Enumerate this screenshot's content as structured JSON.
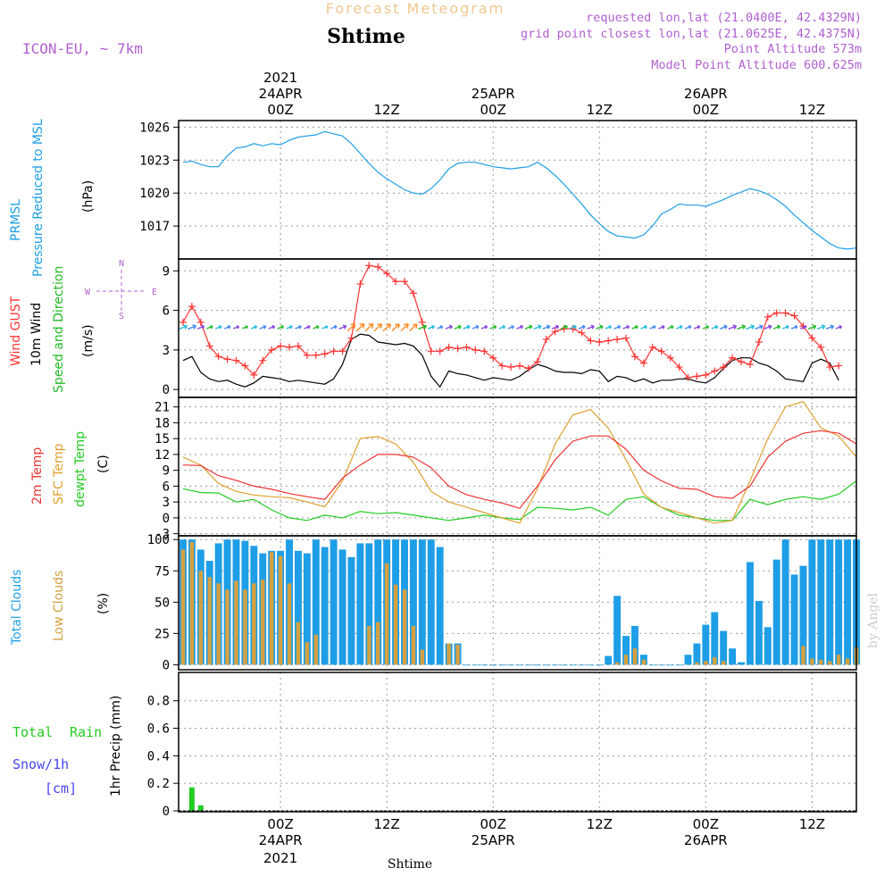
{
  "header": {
    "title": "Forecast Meteogram",
    "subtitle": "Shtime",
    "model": "ICON-EU, ~ 7km",
    "requested": "requested lon,lat (21.0400E, 42.4329N)",
    "gridpoint": "grid point closest lon,lat (21.0625E, 42.4375N)",
    "point_alt": "Point Altitude 573m",
    "model_alt": "Model Point Altitude 600.625m",
    "footer": "Shtime",
    "credit": "by Angel"
  },
  "time_axis": {
    "year": "2021",
    "labels": [
      {
        "h": 0,
        "label": "00Z",
        "date": "24APR"
      },
      {
        "h": 12,
        "label": "12Z",
        "date": ""
      },
      {
        "h": 24,
        "label": "00Z",
        "date": "25APR"
      },
      {
        "h": 36,
        "label": "12Z",
        "date": ""
      },
      {
        "h": 48,
        "label": "00Z",
        "date": "26APR"
      },
      {
        "h": 60,
        "label": "12Z",
        "date": ""
      }
    ],
    "range_hours": [
      -11.5,
      65
    ]
  },
  "colors": {
    "pressure": "#1e9ee6",
    "gust": "#ff3333",
    "wind": "#000000",
    "direction": "#22bb22",
    "temp2m": "#ee3333",
    "sfc": "#e0a030",
    "dew": "#22cc22",
    "clouds_total": "#1e9ee6",
    "clouds_low": "#d4a040",
    "rain": "#22cc22",
    "snow": "#4444ee",
    "meta": "#b060d0"
  },
  "panels": {
    "pressure": {
      "label1": "PRMSL",
      "label2": "Pressure Reduced to MSL",
      "unit": "(hPa)"
    },
    "wind": {
      "label1": "Wind GUST",
      "label2": "10m Wind",
      "label3": "Speed and Direction",
      "unit": "(m/s)",
      "compass_n": "N",
      "compass_s": "S",
      "compass_w": "W",
      "compass_e": "E"
    },
    "temp": {
      "label1": "2m Temp",
      "label2": "SFC Temp",
      "label3": "dewpt Temp",
      "unit": "(C)"
    },
    "clouds": {
      "label1": "Total Clouds",
      "label2": "Low Clouds",
      "unit": "(%)"
    },
    "precip": {
      "label1": "Total",
      "label1b": "Rain",
      "label2": "Snow/1h",
      "label3": "[cm]",
      "unit": "1hr Precip (mm)"
    }
  },
  "chart_data": {
    "type": "line",
    "x_units": "hours from 2021-04-24 00Z",
    "pressure": {
      "ylim": [
        1014,
        1026.6
      ],
      "ticks": [
        1017,
        1020,
        1023,
        1026
      ],
      "x": [
        -11,
        -10,
        -9,
        -8,
        -7,
        -6,
        -5,
        -4,
        -3,
        -2,
        -1,
        0,
        1,
        2,
        3,
        4,
        5,
        6,
        7,
        8,
        9,
        10,
        11,
        12,
        13,
        14,
        15,
        16,
        17,
        18,
        19,
        20,
        21,
        22,
        23,
        24,
        25,
        26,
        27,
        28,
        29,
        30,
        31,
        32,
        33,
        34,
        35,
        36,
        37,
        38,
        39,
        40,
        41,
        42,
        43,
        44,
        45,
        46,
        47,
        48,
        49,
        50,
        51,
        52,
        53,
        54,
        55,
        56,
        57,
        58,
        59,
        60,
        61,
        62,
        63,
        64,
        65
      ],
      "values": [
        1022.8,
        1022.9,
        1022.6,
        1022.4,
        1022.4,
        1023.4,
        1024.1,
        1024.2,
        1024.5,
        1024.3,
        1024.5,
        1024.4,
        1024.8,
        1025.1,
        1025.2,
        1025.3,
        1025.6,
        1025.4,
        1025.2,
        1024.5,
        1023.6,
        1022.7,
        1021.9,
        1021.3,
        1020.8,
        1020.3,
        1020.0,
        1019.9,
        1020.4,
        1021.2,
        1022.2,
        1022.7,
        1022.8,
        1022.8,
        1022.6,
        1022.4,
        1022.3,
        1022.2,
        1022.3,
        1022.4,
        1022.8,
        1022.3,
        1021.6,
        1020.8,
        1019.9,
        1019.0,
        1018.0,
        1017.2,
        1016.5,
        1016.1,
        1016.0,
        1015.9,
        1016.2,
        1017.0,
        1018.1,
        1018.5,
        1019.0,
        1018.9,
        1018.9,
        1018.8,
        1019.1,
        1019.4,
        1019.8,
        1020.1,
        1020.4,
        1020.2,
        1019.9,
        1019.4,
        1018.8,
        1018.0,
        1017.3,
        1016.6,
        1016.0,
        1015.4,
        1015.0,
        1014.9,
        1015.0
      ]
    },
    "wind": {
      "ylim": [
        -0.6,
        9.9
      ],
      "ticks": [
        0,
        3,
        6,
        9
      ],
      "gust_x": [
        -11,
        -10,
        -9,
        -8,
        -7,
        -6,
        -5,
        -4,
        -3,
        -2,
        -1,
        0,
        1,
        2,
        3,
        4,
        5,
        6,
        7,
        8,
        9,
        10,
        11,
        12,
        13,
        14,
        15,
        16,
        17,
        18,
        19,
        20,
        21,
        22,
        23,
        24,
        25,
        26,
        27,
        28,
        29,
        30,
        31,
        32,
        33,
        34,
        35,
        36,
        37,
        38,
        39,
        40,
        41,
        42,
        43,
        44,
        45,
        46,
        47,
        48,
        49,
        50,
        51,
        52,
        53,
        54,
        55,
        56,
        57,
        58,
        59,
        60,
        61,
        62,
        63,
        64,
        65
      ],
      "gust": [
        5.1,
        6.3,
        5.1,
        3.3,
        2.5,
        2.3,
        2.2,
        1.8,
        1.1,
        2.2,
        3.0,
        3.3,
        3.2,
        3.3,
        2.6,
        2.6,
        2.7,
        2.9,
        2.9,
        3.9,
        8.0,
        9.4,
        9.3,
        8.8,
        8.2,
        8.2,
        7.3,
        5.1,
        2.9,
        2.9,
        3.2,
        3.1,
        3.2,
        3.0,
        2.9,
        2.4,
        1.8,
        1.7,
        1.8,
        1.6,
        2.1,
        3.8,
        4.4,
        4.6,
        4.6,
        4.3,
        3.7,
        3.6,
        3.7,
        3.8,
        3.9,
        2.5,
        2.0,
        3.2,
        2.9,
        2.4,
        1.7,
        0.9,
        1.0,
        1.1,
        1.4,
        1.7,
        2.4,
        2.1,
        1.9,
        3.6,
        5.5,
        5.8,
        5.8,
        5.6,
        4.8,
        3.9,
        3.2,
        1.7,
        1.8
      ],
      "speed_x": [
        -11,
        -10,
        -9,
        -8,
        -7,
        -6,
        -5,
        -4,
        -3,
        -2,
        -1,
        0,
        1,
        2,
        3,
        4,
        5,
        6,
        7,
        8,
        9,
        10,
        11,
        12,
        13,
        14,
        15,
        16,
        17,
        18,
        19,
        20,
        21,
        22,
        23,
        24,
        25,
        26,
        27,
        28,
        29,
        30,
        31,
        32,
        33,
        34,
        35,
        36,
        37,
        38,
        39,
        40,
        41,
        42,
        43,
        44,
        45,
        46,
        47,
        48,
        49,
        50,
        51,
        52,
        53,
        54,
        55,
        56,
        57,
        58,
        59,
        60,
        61,
        62,
        63,
        64,
        65
      ],
      "speed": [
        2.2,
        2.5,
        1.3,
        0.8,
        0.6,
        0.7,
        0.4,
        0.2,
        0.5,
        1.0,
        0.9,
        0.8,
        0.6,
        0.7,
        0.6,
        0.5,
        0.4,
        0.8,
        1.9,
        3.8,
        4.2,
        4.1,
        3.6,
        3.5,
        3.4,
        3.5,
        3.3,
        2.6,
        1.0,
        0.2,
        1.4,
        1.2,
        1.1,
        0.9,
        0.7,
        0.9,
        0.8,
        0.7,
        1.0,
        1.5,
        1.9,
        1.7,
        1.4,
        1.3,
        1.3,
        1.2,
        1.5,
        1.4,
        0.6,
        1.0,
        0.9,
        0.6,
        0.8,
        0.5,
        0.7,
        0.7,
        0.8,
        0.8,
        0.6,
        0.5,
        0.9,
        1.6,
        2.2,
        2.4,
        2.4,
        2.0,
        1.8,
        1.4,
        0.8,
        0.7,
        0.6,
        2.0,
        2.3,
        2.0,
        0.7
      ],
      "arrows_y": 4.7
    },
    "temperature": {
      "ylim": [
        -3.4,
        22.8
      ],
      "ticks": [
        -3,
        0,
        3,
        6,
        9,
        12,
        15,
        18,
        21
      ],
      "x": [
        -11,
        -9,
        -7,
        -5,
        -3,
        -1,
        1,
        3,
        5,
        7,
        9,
        11,
        13,
        15,
        17,
        19,
        21,
        23,
        25,
        27,
        29,
        31,
        33,
        35,
        37,
        39,
        41,
        43,
        45,
        47,
        49,
        51,
        53,
        55,
        57,
        59,
        61,
        63,
        65
      ],
      "temp2m": [
        10.0,
        9.9,
        8.0,
        7.1,
        6.0,
        5.4,
        4.6,
        4.0,
        3.5,
        7.5,
        10.0,
        12.0,
        12.0,
        11.5,
        9.5,
        6.0,
        4.4,
        3.5,
        2.8,
        1.8,
        6.0,
        11.0,
        14.5,
        15.5,
        15.5,
        13.0,
        9.0,
        7.0,
        5.6,
        5.4,
        4.0,
        3.7,
        6.0,
        11.5,
        14.5,
        16.0,
        16.5,
        16.0,
        14.0
      ],
      "sfc": [
        11.5,
        10.0,
        6.5,
        5.0,
        4.3,
        4.0,
        3.8,
        3.0,
        2.1,
        7.0,
        15.0,
        15.4,
        14.0,
        10.5,
        5.0,
        3.0,
        2.0,
        1.0,
        0.0,
        -1.0,
        5.5,
        14.0,
        19.5,
        20.5,
        17.0,
        11.0,
        4.5,
        2.0,
        1.0,
        0.0,
        -1.0,
        -0.5,
        7.0,
        15.0,
        21.0,
        22.0,
        17.0,
        15.5,
        11.5
      ],
      "dew": [
        5.5,
        4.8,
        4.7,
        3.0,
        3.5,
        1.5,
        0.0,
        -0.5,
        0.5,
        0.0,
        1.2,
        0.8,
        1.0,
        0.5,
        0.0,
        -0.5,
        0.0,
        0.5,
        0.0,
        -0.3,
        2.0,
        1.8,
        1.5,
        2.0,
        0.5,
        3.5,
        4.0,
        2.0,
        0.5,
        0.0,
        -0.5,
        -0.5,
        3.5,
        2.5,
        3.5,
        4.0,
        3.5,
        4.5,
        7.0
      ]
    },
    "clouds": {
      "ylim": [
        -4,
        103
      ],
      "ticks": [
        0,
        25,
        50,
        75,
        100
      ],
      "x": [
        -11,
        -10,
        -9,
        -8,
        -7,
        -6,
        -5,
        -4,
        -3,
        -2,
        -1,
        0,
        1,
        2,
        3,
        4,
        5,
        6,
        7,
        8,
        9,
        10,
        11,
        12,
        13,
        14,
        15,
        16,
        17,
        18,
        19,
        20,
        21,
        22,
        23,
        24,
        25,
        26,
        27,
        28,
        29,
        30,
        31,
        32,
        33,
        34,
        35,
        36,
        37,
        38,
        39,
        40,
        41,
        42,
        43,
        44,
        45,
        46,
        47,
        48,
        49,
        50,
        51,
        52,
        53,
        54,
        55,
        56,
        57,
        58,
        59,
        60,
        61,
        62,
        63,
        64,
        65
      ],
      "total": [
        100,
        100,
        92,
        83,
        97,
        100,
        100,
        99,
        95,
        89,
        91,
        91,
        100,
        91,
        89,
        100,
        94,
        100,
        92,
        86,
        97,
        97,
        100,
        100,
        100,
        100,
        100,
        100,
        100,
        94,
        17,
        17,
        0,
        0,
        0,
        0,
        0,
        0,
        0,
        0,
        0,
        0,
        0,
        0,
        0,
        0,
        0,
        0,
        7,
        55,
        23,
        31,
        8,
        0,
        0,
        0,
        0,
        8,
        17,
        32,
        42,
        27,
        13,
        2,
        82,
        51,
        30,
        84,
        100,
        72,
        79,
        100,
        100,
        100,
        100,
        100,
        100
      ],
      "low": [
        92,
        98,
        75,
        70,
        65,
        60,
        67,
        60,
        65,
        68,
        90,
        87,
        65,
        34,
        18,
        24,
        0,
        0,
        0,
        0,
        0,
        31,
        34,
        81,
        64,
        60,
        31,
        12,
        0,
        0,
        17,
        16,
        0,
        0,
        0,
        0,
        0,
        0,
        0,
        0,
        0,
        0,
        0,
        0,
        0,
        0,
        0,
        0,
        0,
        2,
        8,
        13,
        4,
        0,
        0,
        0,
        0,
        0,
        2,
        3,
        6,
        3,
        0,
        0,
        0,
        0,
        0,
        0,
        0,
        0,
        15,
        5,
        4,
        3,
        8,
        5,
        14
      ]
    },
    "precip": {
      "ylim": [
        0,
        0.98
      ],
      "ticks": [
        0,
        0.2,
        0.4,
        0.6,
        0.8
      ],
      "tick_labels": [
        "0",
        "0.2",
        "0.4",
        "0.6",
        "0.8"
      ],
      "x": [
        -10,
        -9
      ],
      "rain": [
        0.17,
        0.04
      ],
      "snow": [
        0,
        0
      ]
    }
  }
}
